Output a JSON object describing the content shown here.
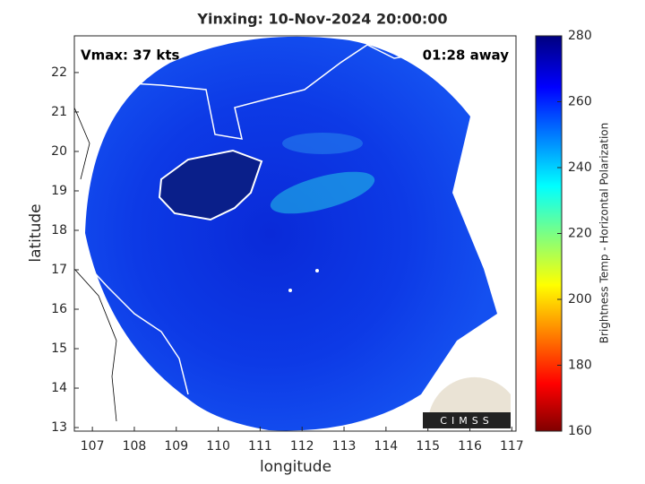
{
  "chart_data": {
    "type": "image",
    "title": "Yinxing: 10-Nov-2024 20:00:00",
    "annotation_left": "Vmax: 37 kts",
    "annotation_right": "01:28 away",
    "xlabel": "longitude",
    "ylabel": "latitude",
    "xlim": [
      106.57,
      117.1
    ],
    "ylim": [
      12.91,
      22.93
    ],
    "xticks": [
      107,
      108,
      109,
      110,
      111,
      112,
      113,
      114,
      115,
      116,
      117
    ],
    "yticks": [
      13,
      14,
      15,
      16,
      17,
      18,
      19,
      20,
      21,
      22
    ],
    "colorbar_label": "Brightness Temp - Horizontal Polarization",
    "clim": [
      160,
      280
    ],
    "cticks": [
      160,
      180,
      200,
      220,
      240,
      260,
      280
    ],
    "logo_text": "CIMSS"
  }
}
